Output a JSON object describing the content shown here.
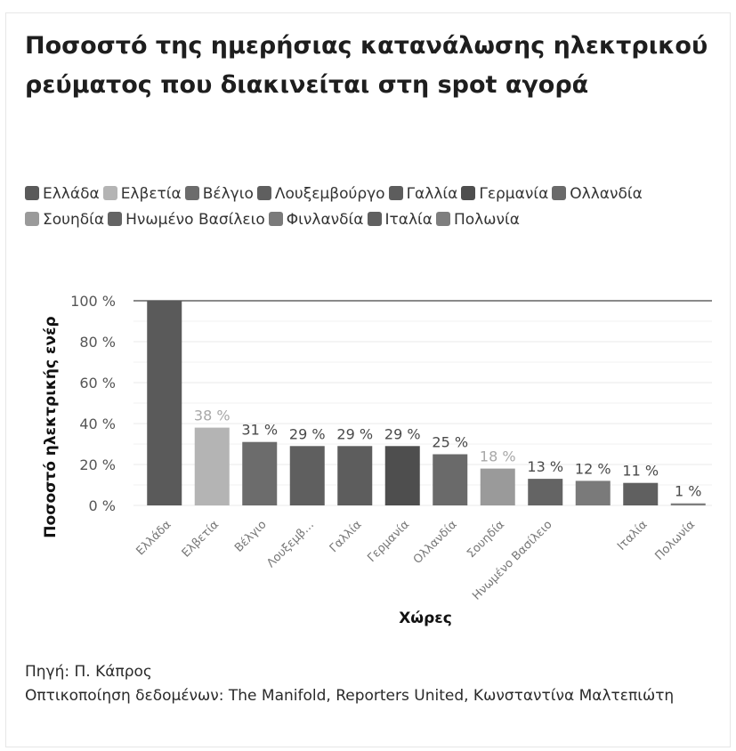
{
  "chart_data": {
    "type": "bar",
    "title": "Ποσοστό της ημερήσιας κατανάλωσης ηλεκτρικού ρεύματος που διακινείται στη spot αγορά",
    "xlabel": "Χώρες",
    "ylabel": "Ποσοστό ηλεκτρικής ενέρ",
    "ylim": [
      0,
      100
    ],
    "yticks": [
      "0 %",
      "20 %",
      "40 %",
      "60 %",
      "80 %",
      "100 %"
    ],
    "grid": true,
    "legend_position": "top",
    "legend": [
      "Ελλάδα",
      "Ελβετία",
      "Βέλγιο",
      "Λουξεμβούργο",
      "Γαλλία",
      "Γερμανία",
      "Ολλανδία",
      "Σουηδία",
      "Ηνωμένο Βασίλειο",
      "Φινλανδία",
      "Ιταλία",
      "Πολωνία"
    ],
    "categories": [
      "Ελλάδα",
      "Ελβετία",
      "Βέλγιο",
      "Λουξεμβ…",
      "Γαλλία",
      "Γερμανία",
      "Ολλανδία",
      "Σουηδία",
      "Ηνωμένο Βασίλειο",
      "",
      "Ιταλία",
      "Πολωνία"
    ],
    "values": [
      100,
      38,
      31,
      29,
      29,
      29,
      25,
      18,
      13,
      12,
      11,
      1
    ],
    "value_labels": [
      "",
      "38 %",
      "31 %",
      "29 %",
      "29 %",
      "29 %",
      "25 %",
      "18 %",
      "13 %",
      "12 %",
      "11 %",
      "1 %"
    ],
    "colors": [
      "#5a5a5a",
      "#b4b4b4",
      "#6c6c6c",
      "#5f5f5f",
      "#5d5d5d",
      "#4e4e4e",
      "#6a6a6a",
      "#9a9a9a",
      "#646464",
      "#7a7a7a",
      "#606060",
      "#7e7e7e"
    ]
  },
  "footer": {
    "source": "Πηγή: Π. Κάπρος",
    "credits": "Οπτικοποίηση δεδομένων: The Manifold, Reporters United, Κωνσταντίνα Μαλτεπιώτη"
  }
}
